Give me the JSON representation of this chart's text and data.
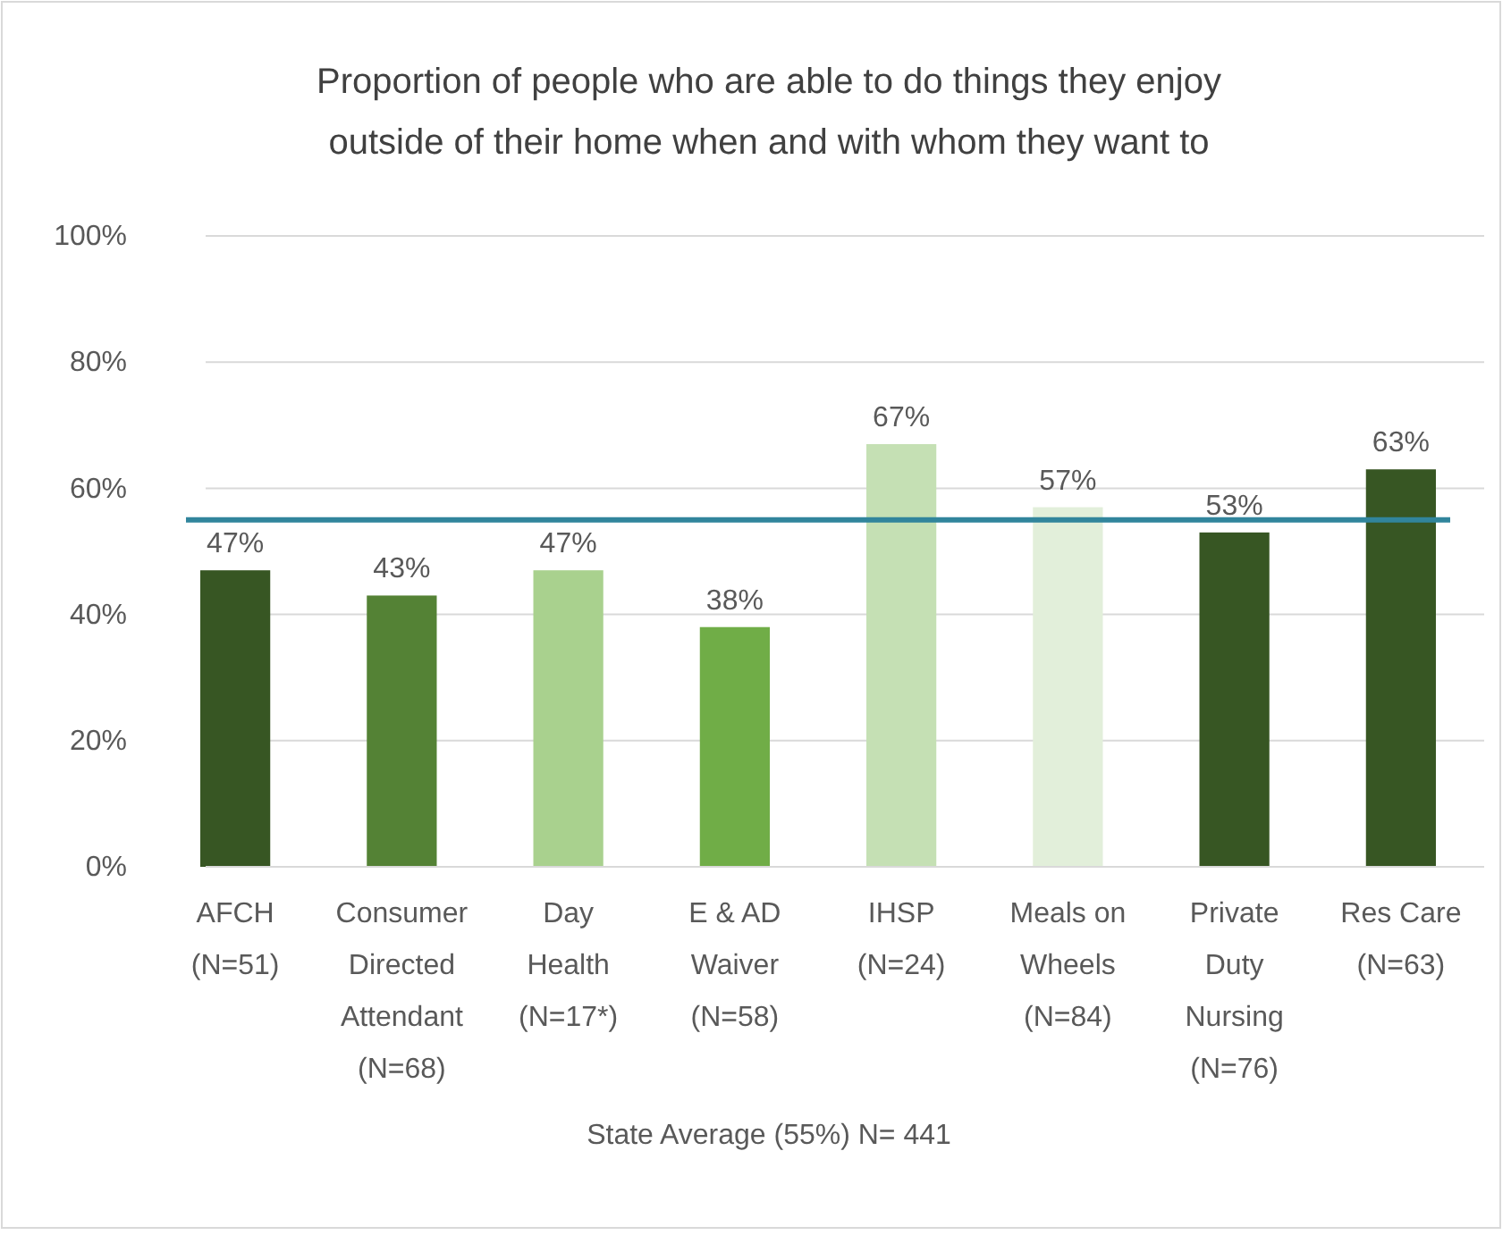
{
  "chart_data": {
    "type": "bar",
    "title": "Proportion of people who are able to do things they enjoy\noutside of their home when and with whom they want to",
    "categories": [
      "AFCH\n(N=51)",
      "Consumer\nDirected\nAttendant\n(N=68)",
      "Day\nHealth\n(N=17*)",
      "E & AD\nWaiver\n(N=58)",
      "IHSP\n(N=24)",
      "Meals on\nWheels\n(N=84)",
      "Private\nDuty\nNursing\n(N=76)",
      "Res Care\n(N=63)"
    ],
    "values": [
      47,
      43,
      47,
      38,
      67,
      57,
      53,
      63
    ],
    "colors": [
      "#375623",
      "#548235",
      "#a9d18e",
      "#70ad47",
      "#c5e0b4",
      "#e2efda",
      "#375623",
      "#375623"
    ],
    "value_labels": [
      "47%",
      "43%",
      "47%",
      "38%",
      "67%",
      "57%",
      "53%",
      "63%"
    ],
    "xlabel": "State Average (55%) N= 441",
    "ylim": [
      0,
      100
    ],
    "yticks": [
      {
        "value": 0,
        "label": "0%"
      },
      {
        "value": 20,
        "label": "20%"
      },
      {
        "value": 40,
        "label": "40%"
      },
      {
        "value": 60,
        "label": "60%"
      },
      {
        "value": 80,
        "label": "80%"
      },
      {
        "value": 100,
        "label": "100%"
      }
    ],
    "grid": "y",
    "ref_lines": [
      {
        "axis": "y",
        "value": 55,
        "color": "#31859c"
      }
    ]
  }
}
